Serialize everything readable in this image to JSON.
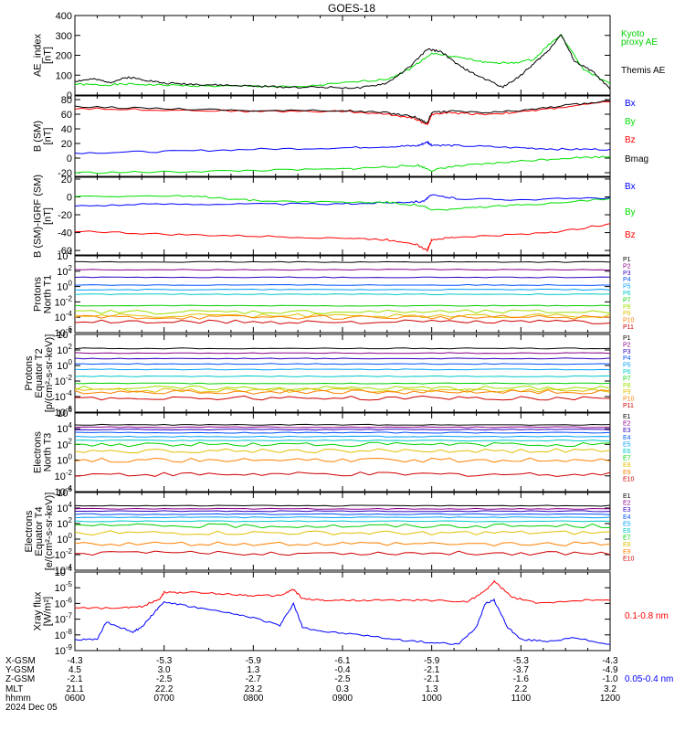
{
  "title": "GOES-18",
  "chart_data": [
    {
      "type": "line",
      "ylabel": [
        "AE_index",
        "[nT]"
      ],
      "ylim": [
        0,
        400
      ],
      "yticks": [
        0,
        100,
        200,
        300,
        400
      ],
      "ytick_labels": [
        "0",
        "100",
        "200",
        "300",
        "400"
      ],
      "series": [
        {
          "name": "Kyoto proxy AE",
          "color": "#00e000",
          "x": [
            6.0,
            6.3,
            6.6,
            7.0,
            7.5,
            8.0,
            8.5,
            9.0,
            9.5,
            9.75,
            10.0,
            10.3,
            10.6,
            10.9,
            11.15,
            11.3,
            11.45,
            11.7,
            12.0
          ],
          "values": [
            55,
            50,
            55,
            50,
            45,
            45,
            40,
            60,
            80,
            130,
            210,
            190,
            165,
            160,
            180,
            250,
            300,
            130,
            55
          ]
        },
        {
          "name": "Themis AE",
          "color": "#000000",
          "x": [
            6.0,
            6.2,
            6.4,
            6.6,
            6.8,
            7.0,
            7.3,
            7.6,
            8.0,
            8.4,
            8.8,
            9.2,
            9.5,
            9.75,
            9.95,
            10.1,
            10.3,
            10.5,
            10.8,
            11.0,
            11.15,
            11.3,
            11.45,
            11.6,
            11.8,
            12.0
          ],
          "values": [
            70,
            80,
            65,
            90,
            75,
            60,
            55,
            50,
            45,
            40,
            40,
            35,
            60,
            140,
            230,
            220,
            150,
            100,
            40,
            100,
            160,
            220,
            305,
            170,
            120,
            30
          ]
        }
      ],
      "legend": [
        "Kyoto",
        "proxy AE",
        "Themis AE"
      ]
    },
    {
      "type": "line",
      "ylabel": [
        "B (SM)",
        "[nT]"
      ],
      "ylim": [
        -25,
        85
      ],
      "yticks": [
        -20,
        0,
        20,
        40,
        60,
        80
      ],
      "ytick_labels": [
        "-20",
        "0",
        "20",
        "40",
        "60",
        "80"
      ],
      "series": [
        {
          "name": "Bx",
          "color": "#0000ff",
          "x": [
            6.0,
            7.0,
            8.0,
            9.0,
            9.6,
            9.85,
            9.95,
            10.0,
            10.3,
            11.0,
            11.5,
            12.0
          ],
          "values": [
            7,
            9,
            12,
            14,
            16,
            17,
            22,
            18,
            17,
            14,
            12,
            12
          ]
        },
        {
          "name": "By",
          "color": "#00e000",
          "x": [
            6.0,
            7.0,
            8.0,
            9.0,
            9.5,
            9.85,
            10.0,
            10.2,
            10.6,
            11.0,
            11.5,
            12.0
          ],
          "values": [
            -20,
            -19,
            -17,
            -15,
            -12,
            -10,
            -17,
            -12,
            -8,
            -4,
            0,
            2
          ]
        },
        {
          "name": "Bz",
          "color": "#ff0000",
          "x": [
            6.0,
            7.0,
            8.0,
            9.0,
            9.5,
            9.8,
            9.95,
            10.0,
            10.2,
            10.6,
            11.0,
            11.5,
            12.0
          ],
          "values": [
            68,
            66,
            64,
            64,
            60,
            55,
            45,
            60,
            62,
            60,
            63,
            70,
            77
          ]
        },
        {
          "name": "Bmag",
          "color": "#000000",
          "x": [
            6.0,
            7.0,
            8.0,
            9.0,
            9.5,
            9.8,
            9.95,
            10.0,
            10.2,
            10.6,
            11.0,
            11.5,
            12.0
          ],
          "values": [
            70,
            68,
            65,
            65,
            62,
            57,
            48,
            62,
            64,
            62,
            65,
            72,
            78
          ]
        }
      ],
      "legend": [
        "Bx",
        "By",
        "Bz",
        "Bmag"
      ]
    },
    {
      "type": "line",
      "ylabel": [
        "B (SM)-IGRF (SM)",
        "[nT]"
      ],
      "ylim": [
        -65,
        22
      ],
      "yticks": [
        -60,
        -40,
        -20,
        0,
        20
      ],
      "ytick_labels": [
        "-60",
        "-40",
        "-20",
        "0",
        "20"
      ],
      "series": [
        {
          "name": "Bx",
          "color": "#0000ff",
          "x": [
            6.0,
            7.0,
            8.0,
            9.0,
            9.6,
            9.9,
            10.0,
            10.3,
            11.0,
            12.0
          ],
          "values": [
            -10,
            -8,
            -8,
            -8,
            -6,
            -5,
            2,
            -2,
            -3,
            -1
          ]
        },
        {
          "name": "By",
          "color": "#00e000",
          "x": [
            6.0,
            7.0,
            7.5,
            8.0,
            9.0,
            9.5,
            9.9,
            10.0,
            10.5,
            11.0,
            12.0
          ],
          "values": [
            1,
            1,
            0,
            -4,
            -6,
            -6,
            -10,
            -15,
            -12,
            -9,
            -2
          ]
        },
        {
          "name": "Bz",
          "color": "#ff0000",
          "x": [
            6.0,
            7.0,
            8.0,
            9.0,
            9.5,
            9.8,
            9.95,
            10.0,
            10.3,
            11.0,
            11.5,
            12.0
          ],
          "values": [
            -38,
            -42,
            -44,
            -46,
            -48,
            -52,
            -60,
            -48,
            -45,
            -42,
            -38,
            -30
          ]
        }
      ],
      "legend": [
        "Bx",
        "By",
        "Bz"
      ]
    },
    {
      "type": "line",
      "yscale": "log",
      "ylabel": [
        "Protons",
        "North T1"
      ],
      "ylim": [
        -6,
        4
      ],
      "yticks": [
        4,
        2,
        0,
        -2,
        -4,
        -6
      ],
      "ytick_labels": [
        "10^4",
        "10^2",
        "10^0",
        "10^-2",
        "10^-4",
        "10^-6"
      ],
      "series": [
        {
          "name": "P1",
          "color": "#000000",
          "log10": 3.2
        },
        {
          "name": "P2",
          "color": "#8a0089",
          "log10": 2.2
        },
        {
          "name": "P3",
          "color": "#3000c0",
          "log10": 1.2
        },
        {
          "name": "P4",
          "color": "#0050ff",
          "log10": 0.2
        },
        {
          "name": "P5",
          "color": "#00a0ff",
          "log10": -0.4
        },
        {
          "name": "P6",
          "color": "#00c8c8",
          "log10": -1.0
        },
        {
          "name": "P7",
          "color": "#00d000",
          "log10": -2.5
        },
        {
          "name": "P8",
          "color": "#a0e000",
          "log10": -3.3
        },
        {
          "name": "P9",
          "color": "#e0c000",
          "log10": -3.8
        },
        {
          "name": "P10",
          "color": "#ff8000",
          "log10": -4.0
        },
        {
          "name": "P11",
          "color": "#d00000",
          "log10": -4.6
        }
      ],
      "legend": [
        "P1",
        "P2",
        "P3",
        "P4",
        "P5",
        "P6",
        "P7",
        "P8",
        "P9",
        "P10",
        "P11"
      ]
    },
    {
      "type": "line",
      "yscale": "log",
      "ylabel": [
        "Protons",
        "Equator T2",
        "[p/(cm²-s-sr-keV)]"
      ],
      "ylim": [
        -6,
        4
      ],
      "yticks": [
        4,
        2,
        0,
        -2,
        -4,
        -6
      ],
      "ytick_labels": [
        "10^4",
        "10^2",
        "10^0",
        "10^-2",
        "10^-4",
        "10^-6"
      ],
      "series": [
        {
          "name": "P1",
          "color": "#000000",
          "log10": 2.2
        },
        {
          "name": "P2",
          "color": "#8a0089",
          "log10": 1.6
        },
        {
          "name": "P3",
          "color": "#3000c0",
          "log10": 0.9
        },
        {
          "name": "P4",
          "color": "#0050ff",
          "log10": 0.2
        },
        {
          "name": "P5",
          "color": "#00a0ff",
          "log10": -0.5
        },
        {
          "name": "P6",
          "color": "#00c8c8",
          "log10": -1.4
        },
        {
          "name": "P7",
          "color": "#00d000",
          "log10": -2.3
        },
        {
          "name": "P8",
          "color": "#a0e000",
          "log10": -2.9
        },
        {
          "name": "P9",
          "color": "#e0c000",
          "log10": -3.2
        },
        {
          "name": "P10",
          "color": "#ff8000",
          "log10": -3.4
        },
        {
          "name": "P11",
          "color": "#d00000",
          "log10": -4.2
        }
      ],
      "legend": [
        "P1",
        "P2",
        "P3",
        "P4",
        "P5",
        "P6",
        "P7",
        "P8",
        "P9",
        "P10",
        "P11"
      ]
    },
    {
      "type": "line",
      "yscale": "log",
      "ylabel": [
        "Electrons",
        "North T3"
      ],
      "ylim": [
        -4,
        6
      ],
      "yticks": [
        6,
        4,
        2,
        0,
        -2,
        -4
      ],
      "ytick_labels": [
        "10^6",
        "10^4",
        "10^2",
        "10^0",
        "10^-2",
        "10^-4"
      ],
      "series": [
        {
          "name": "E1",
          "color": "#000000",
          "log10": 4.5
        },
        {
          "name": "E2",
          "color": "#8a0089",
          "log10": 4.2
        },
        {
          "name": "E3",
          "color": "#3000c0",
          "log10": 3.9
        },
        {
          "name": "E4",
          "color": "#0050ff",
          "log10": 3.5
        },
        {
          "name": "E5",
          "color": "#00a0ff",
          "log10": 3.0
        },
        {
          "name": "E6",
          "color": "#00c8c8",
          "log10": 2.5
        },
        {
          "name": "E7",
          "color": "#00d000",
          "log10": 2.0
        },
        {
          "name": "E8",
          "color": "#e0c000",
          "log10": 1.2
        },
        {
          "name": "E9",
          "color": "#ff8000",
          "log10": 0.0
        },
        {
          "name": "E10",
          "color": "#d00000",
          "log10": -1.8
        }
      ],
      "legend": [
        "E1",
        "E2",
        "E3",
        "E4",
        "E5",
        "E6",
        "E7",
        "E8",
        "E9",
        "E10"
      ]
    },
    {
      "type": "line",
      "yscale": "log",
      "ylabel": [
        "Electrons",
        "Equator T4",
        "[e/(cm²-s-sr-keV)]"
      ],
      "ylim": [
        -4,
        6
      ],
      "yticks": [
        6,
        4,
        2,
        0,
        -2,
        -4
      ],
      "ytick_labels": [
        "10^6",
        "10^4",
        "10^2",
        "10^0",
        "10^-2",
        "10^-4"
      ],
      "series": [
        {
          "name": "E1",
          "color": "#000000",
          "log10": 4.3
        },
        {
          "name": "E2",
          "color": "#8a0089",
          "log10": 3.9
        },
        {
          "name": "E3",
          "color": "#3000c0",
          "log10": 3.6
        },
        {
          "name": "E4",
          "color": "#0050ff",
          "log10": 3.2
        },
        {
          "name": "E5",
          "color": "#00a0ff",
          "log10": 2.8
        },
        {
          "name": "E6",
          "color": "#00c8c8",
          "log10": 2.3
        },
        {
          "name": "E7",
          "color": "#00d000",
          "log10": 1.7
        },
        {
          "name": "E8",
          "color": "#e0c000",
          "log10": 0.8
        },
        {
          "name": "E9",
          "color": "#ff8000",
          "log10": -0.6
        },
        {
          "name": "E10",
          "color": "#d00000",
          "log10": -1.8
        }
      ],
      "legend": [
        "E1",
        "E2",
        "E3",
        "E4",
        "E5",
        "E6",
        "E7",
        "E8",
        "E9",
        "E10"
      ]
    },
    {
      "type": "line",
      "yscale": "log",
      "ylabel": [
        "Xray flux",
        "[W/m²]"
      ],
      "ylim": [
        -9,
        -4
      ],
      "yticks": [
        -4,
        -5,
        -6,
        -7,
        -8,
        -9
      ],
      "ytick_labels": [
        "10^-4",
        "10^-5",
        "10^-6",
        "10^-7",
        "10^-8",
        "10^-9"
      ],
      "series": [
        {
          "name": "0.1-0.8 nm",
          "color": "#ff0000",
          "x": [
            6.0,
            6.5,
            6.75,
            6.95,
            7.0,
            7.3,
            7.7,
            8.0,
            8.3,
            8.45,
            8.55,
            8.8,
            9.2,
            9.6,
            10.0,
            10.4,
            10.6,
            10.7,
            10.9,
            11.2,
            11.6,
            12.0
          ],
          "log10": [
            -6.3,
            -6.3,
            -6.2,
            -5.7,
            -5.3,
            -5.3,
            -5.4,
            -5.5,
            -5.5,
            -5.1,
            -5.7,
            -5.8,
            -5.8,
            -5.8,
            -5.8,
            -5.9,
            -5.2,
            -4.6,
            -5.6,
            -6.0,
            -5.8,
            -5.8
          ]
        },
        {
          "name": "0.05-0.4 nm",
          "color": "#0000ff",
          "x": [
            6.0,
            6.25,
            6.35,
            6.5,
            6.65,
            6.75,
            6.9,
            7.0,
            7.3,
            7.7,
            8.0,
            8.3,
            8.45,
            8.55,
            8.8,
            9.2,
            9.6,
            10.0,
            10.3,
            10.5,
            10.6,
            10.7,
            10.85,
            11.0,
            11.3,
            11.6,
            12.0
          ],
          "log10": [
            -8.3,
            -8.3,
            -7.2,
            -7.5,
            -7.8,
            -7.5,
            -6.5,
            -5.9,
            -6.2,
            -6.6,
            -6.9,
            -7.4,
            -6.0,
            -7.5,
            -7.8,
            -8.0,
            -8.3,
            -8.5,
            -8.6,
            -7.5,
            -6.0,
            -5.8,
            -7.5,
            -8.3,
            -8.4,
            -8.2,
            -8.6
          ]
        }
      ],
      "legend": [
        "0.1-0.8 nm",
        "0.05-0.4 nm"
      ]
    }
  ],
  "xaxis": {
    "ticks": [
      6,
      7,
      8,
      9,
      10,
      11,
      12
    ],
    "row_labels": [
      "X-GSM",
      "Y-GSM",
      "Z-GSM",
      "MLT",
      "hhmm"
    ],
    "rows": [
      [
        "-4.3",
        "-5.3",
        "-5.9",
        "-6.1",
        "-5.9",
        "-5.3",
        "-4.3"
      ],
      [
        "4.5",
        "3.0",
        "1.3",
        "-0.4",
        "-2.1",
        "-3.7",
        "-4.9"
      ],
      [
        "-2.1",
        "-2.5",
        "-2.7",
        "-2.5",
        "-2.1",
        "-1.6",
        "-1.0"
      ],
      [
        "21.1",
        "22.2",
        "23.2",
        "0.3",
        "1.3",
        "2.2",
        "3.2"
      ],
      [
        "0600",
        "0700",
        "0800",
        "0900",
        "1000",
        "1100",
        "1200"
      ]
    ],
    "date": "2024 Dec 05"
  }
}
